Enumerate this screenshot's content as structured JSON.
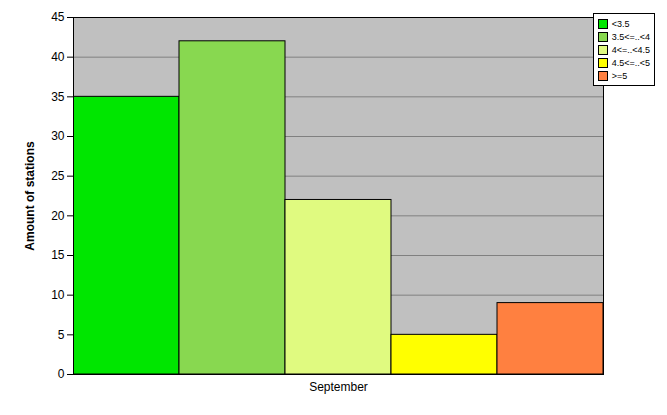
{
  "chart_data": {
    "type": "bar",
    "ylabel": "Amount of stations",
    "categories": [
      "September"
    ],
    "series": [
      {
        "name": "<3.5",
        "color": "#00e600",
        "values": [
          35
        ]
      },
      {
        "name": "3.5<=..<4",
        "color": "#88d850",
        "values": [
          42
        ]
      },
      {
        "name": "4<=..<4.5",
        "color": "#e0fa80",
        "values": [
          22
        ]
      },
      {
        "name": "4.5<=..<5",
        "color": "#ffff00",
        "values": [
          5
        ]
      },
      {
        "name": ">=5",
        "color": "#ff8040",
        "values": [
          9
        ]
      }
    ],
    "ylim": [
      0,
      45
    ],
    "yticks": [
      0,
      5,
      10,
      15,
      20,
      25,
      30,
      35,
      40,
      45
    ],
    "grid": true,
    "legend": "top-right"
  }
}
